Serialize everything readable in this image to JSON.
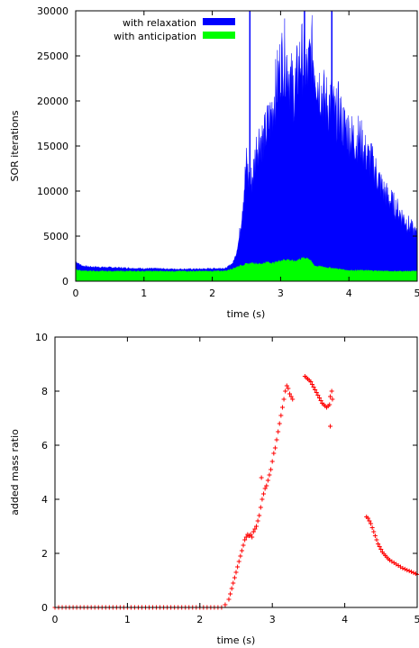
{
  "chart_data": [
    {
      "type": "area",
      "xlabel": "time (s)",
      "ylabel": "SOR iterations",
      "xlim": [
        0,
        5
      ],
      "ylim": [
        0,
        30000
      ],
      "xticks": [
        0,
        1,
        2,
        3,
        4,
        5
      ],
      "yticks": [
        0,
        5000,
        10000,
        15000,
        20000,
        25000,
        30000
      ],
      "grid": false,
      "legend_position": "top-right",
      "series": [
        {
          "name": "with relaxation",
          "color": "#0000ff",
          "x": [
            0,
            0.05,
            0.1,
            0.2,
            0.4,
            0.6,
            0.8,
            1.0,
            1.2,
            1.4,
            1.6,
            1.8,
            2.0,
            2.2,
            2.3,
            2.35,
            2.4,
            2.45,
            2.5,
            2.55,
            2.6,
            2.65,
            2.7,
            2.75,
            2.8,
            2.85,
            2.9,
            2.95,
            3.0,
            3.05,
            3.1,
            3.15,
            3.2,
            3.25,
            3.3,
            3.35,
            3.4,
            3.45,
            3.5,
            3.55,
            3.6,
            3.65,
            3.7,
            3.75,
            3.8,
            3.85,
            3.9,
            3.95,
            4.0,
            4.05,
            4.1,
            4.15,
            4.2,
            4.25,
            4.3,
            4.35,
            4.4,
            4.45,
            4.5,
            4.55,
            4.6,
            4.65,
            4.7,
            4.75,
            4.8,
            4.85,
            4.9,
            4.95,
            5.0
          ],
          "values": [
            2200,
            1900,
            1700,
            1600,
            1550,
            1500,
            1450,
            1400,
            1400,
            1350,
            1350,
            1350,
            1400,
            1450,
            2000,
            3000,
            5000,
            9000,
            13000,
            10500,
            12000,
            15000,
            16000,
            15500,
            17000,
            18000,
            20000,
            22000,
            24000,
            25000,
            24000,
            22000,
            21000,
            23000,
            25000,
            24000,
            23000,
            25500,
            24000,
            22000,
            21000,
            20000,
            19500,
            20000,
            18000,
            19000,
            17500,
            17000,
            16500,
            16000,
            15500,
            16000,
            15000,
            14000,
            13500,
            13000,
            12000,
            11000,
            10000,
            9500,
            9000,
            8500,
            8000,
            7500,
            7000,
            6500,
            6000,
            5500,
            5000
          ],
          "peaks": [
            {
              "x": 2.55,
              "y": 30000
            },
            {
              "x": 3.35,
              "y": 30000
            },
            {
              "x": 3.75,
              "y": 30000
            }
          ]
        },
        {
          "name": "with anticipation",
          "color": "#00ff00",
          "x": [
            0,
            0.05,
            0.1,
            0.3,
            0.5,
            0.7,
            1.0,
            1.2,
            1.5,
            1.8,
            2.0,
            2.2,
            2.3,
            2.4,
            2.5,
            2.6,
            2.7,
            2.8,
            2.9,
            3.0,
            3.1,
            3.2,
            3.3,
            3.4,
            3.5,
            3.6,
            3.7,
            3.8,
            3.9,
            4.0,
            4.2,
            4.4,
            4.6,
            4.8,
            5.0
          ],
          "values": [
            1300,
            1200,
            1150,
            1100,
            1100,
            1100,
            1100,
            1100,
            1100,
            1100,
            1100,
            1150,
            1400,
            1700,
            1900,
            2000,
            1900,
            2100,
            2000,
            2300,
            2400,
            2200,
            2500,
            2600,
            1700,
            1600,
            1500,
            1400,
            1300,
            1200,
            1200,
            1150,
            1100,
            1100,
            1100
          ]
        }
      ]
    },
    {
      "type": "scatter",
      "xlabel": "time (s)",
      "ylabel": "added mass ratio",
      "xlim": [
        0,
        5
      ],
      "ylim": [
        0,
        10
      ],
      "xticks": [
        0,
        1,
        2,
        3,
        4,
        5
      ],
      "yticks": [
        0,
        2,
        4,
        6,
        8,
        10
      ],
      "grid": false,
      "marker": "+",
      "color": "#ff0000",
      "series": [
        {
          "x": [
            0.0,
            0.05,
            0.1,
            0.15,
            0.2,
            0.25,
            0.3,
            0.35,
            0.4,
            0.45,
            0.5,
            0.55,
            0.6,
            0.65,
            0.7,
            0.75,
            0.8,
            0.85,
            0.9,
            0.95,
            1.0,
            1.05,
            1.1,
            1.15,
            1.2,
            1.25,
            1.3,
            1.35,
            1.4,
            1.45,
            1.5,
            1.55,
            1.6,
            1.65,
            1.7,
            1.75,
            1.8,
            1.85,
            1.9,
            1.95,
            2.0,
            2.05,
            2.1,
            2.15,
            2.2,
            2.25,
            2.3,
            2.35,
            2.4,
            2.42,
            2.44,
            2.46,
            2.48,
            2.5,
            2.52,
            2.54,
            2.56,
            2.58,
            2.6,
            2.62,
            2.64,
            2.66,
            2.68,
            2.7,
            2.72,
            2.74,
            2.76,
            2.78,
            2.8,
            2.82,
            2.84,
            2.86,
            2.88,
            2.9,
            2.92,
            2.94,
            2.96,
            2.98,
            3.0,
            3.02,
            3.04,
            3.06,
            3.08,
            3.1,
            3.12,
            3.14,
            3.16,
            3.18,
            3.2,
            3.22,
            3.24,
            3.26,
            3.28,
            3.45,
            3.47,
            3.49,
            3.51,
            3.53,
            3.55,
            3.57,
            3.59,
            3.61,
            3.63,
            3.65,
            3.67,
            3.69,
            3.71,
            3.73,
            3.75,
            3.77,
            3.79,
            3.8,
            3.82,
            3.83,
            3.8,
            2.85,
            4.3,
            4.32,
            4.34,
            4.36,
            4.38,
            4.4,
            4.42,
            4.44,
            4.46,
            4.48,
            4.5,
            4.52,
            4.54,
            4.56,
            4.58,
            4.6,
            4.62,
            4.65,
            4.68,
            4.71,
            4.74,
            4.77,
            4.8,
            4.83,
            4.86,
            4.89,
            4.92,
            4.95,
            4.98,
            5.0
          ],
          "y": [
            0.0,
            0.0,
            0.0,
            0.0,
            0.0,
            0.0,
            0.0,
            0.0,
            0.0,
            0.0,
            0.0,
            0.0,
            0.0,
            0.0,
            0.0,
            0.0,
            0.0,
            0.0,
            0.0,
            0.0,
            0.0,
            0.0,
            0.0,
            0.0,
            0.0,
            0.0,
            0.0,
            0.0,
            0.0,
            0.0,
            0.0,
            0.0,
            0.0,
            0.0,
            0.0,
            0.0,
            0.0,
            0.0,
            0.0,
            0.0,
            0.0,
            0.0,
            0.0,
            0.0,
            0.0,
            0.0,
            0.0,
            0.1,
            0.3,
            0.5,
            0.7,
            0.9,
            1.1,
            1.3,
            1.5,
            1.7,
            1.9,
            2.1,
            2.3,
            2.5,
            2.6,
            2.7,
            2.65,
            2.7,
            2.6,
            2.8,
            2.9,
            3.0,
            3.2,
            3.4,
            3.7,
            4.0,
            4.2,
            4.4,
            4.5,
            4.7,
            4.9,
            5.1,
            5.4,
            5.7,
            5.9,
            6.2,
            6.5,
            6.8,
            7.1,
            7.4,
            7.7,
            8.0,
            8.2,
            8.1,
            7.9,
            7.8,
            7.7,
            8.55,
            8.5,
            8.45,
            8.4,
            8.35,
            8.25,
            8.15,
            8.05,
            7.95,
            7.85,
            7.75,
            7.65,
            7.55,
            7.5,
            7.45,
            7.4,
            7.45,
            7.5,
            7.8,
            8.0,
            7.7,
            6.7,
            4.8,
            3.35,
            3.3,
            3.2,
            3.1,
            2.95,
            2.8,
            2.65,
            2.5,
            2.35,
            2.25,
            2.15,
            2.05,
            1.98,
            1.92,
            1.86,
            1.8,
            1.75,
            1.7,
            1.65,
            1.6,
            1.55,
            1.5,
            1.45,
            1.42,
            1.38,
            1.35,
            1.32,
            1.28,
            1.25,
            1.22
          ]
        }
      ]
    }
  ],
  "fills": {
    "with relaxation": 1,
    "with anticipation": 1
  }
}
